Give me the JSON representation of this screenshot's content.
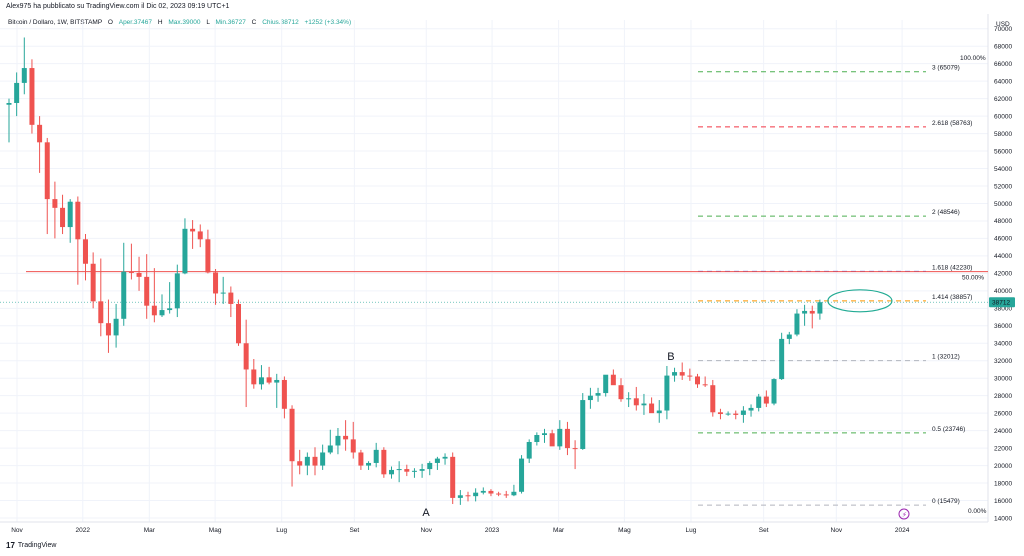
{
  "header": {
    "author_line": "Alex975 ha pubblicato su TradingView.com il Dic 02, 2023 09:19 UTC+1"
  },
  "legend": {
    "symbol": "Bitcoin / Dollaro, 1W, BITSTAMP",
    "open_label": "O",
    "open_text": "Aper.37467",
    "high_label": "H",
    "high_text": "Max.39000",
    "low_label": "L",
    "low_text": "Min.36727",
    "close_label": "C",
    "close_text": "Chius.38712",
    "change_text": "+1252 (+3.34%)"
  },
  "brand": {
    "logo": "17",
    "name": "TradingView"
  },
  "colors": {
    "up": "#26a69a",
    "down": "#ef5350",
    "red_line": "#ef5350",
    "fib_gray": "#b2b5be",
    "fib_green": "#4caf50",
    "fib_red": "#f23645",
    "fib_blue": "#2962ff",
    "fib_orange": "#ff9800",
    "ellipse": "#22ab94",
    "price_badge": "#26a69a"
  },
  "chart_data": {
    "type": "candlestick",
    "currency_label": "USD",
    "ylim": [
      14000,
      71000
    ],
    "y_ticks": [
      14000,
      16000,
      18000,
      20000,
      22000,
      24000,
      26000,
      28000,
      30000,
      32000,
      34000,
      36000,
      38000,
      40000,
      42000,
      44000,
      46000,
      48000,
      50000,
      52000,
      54000,
      56000,
      58000,
      60000,
      62000,
      64000,
      66000,
      68000,
      70000
    ],
    "x_ticks": [
      "Nov",
      "2022",
      "Mar",
      "Mag",
      "Lug",
      "Set",
      "Nov",
      "2023",
      "Mar",
      "Mag",
      "Lug",
      "Set",
      "Nov",
      "2024"
    ],
    "last_price_label": "38712",
    "horizontal_line": {
      "value": 42200,
      "label": "50.00%"
    },
    "fib_levels": [
      {
        "label": "0 (15479)",
        "value": 15479,
        "color": "gray"
      },
      {
        "label": "0.5 (23746)",
        "value": 23746,
        "color": "green"
      },
      {
        "label": "1 (32012)",
        "value": 32012,
        "color": "gray"
      },
      {
        "label": "1.414 (38857)",
        "value": 38857,
        "color": "orange"
      },
      {
        "label": "1.618 (42230)",
        "value": 42230,
        "color": "blue"
      },
      {
        "label": "2 (48546)",
        "value": 48546,
        "color": "green"
      },
      {
        "label": "2.618 (58763)",
        "value": 58763,
        "color": "red"
      },
      {
        "label": "3 (65079)",
        "value": 65079,
        "color": "green"
      }
    ],
    "fib_edge_labels": [
      "100.00%",
      "0.00%"
    ],
    "annotations": [
      {
        "text": "A",
        "week": 54
      },
      {
        "text": "B",
        "week": 86
      }
    ],
    "candles": [
      [
        61300,
        62000,
        57000,
        61500
      ],
      [
        61500,
        65000,
        60000,
        63800
      ],
      [
        63800,
        69000,
        62500,
        65500
      ],
      [
        65500,
        66500,
        58000,
        59000
      ],
      [
        59000,
        60000,
        53500,
        57000
      ],
      [
        57000,
        57500,
        46500,
        50500
      ],
      [
        50500,
        52500,
        46000,
        49500
      ],
      [
        49500,
        51000,
        46500,
        47300
      ],
      [
        47300,
        50500,
        45500,
        50200
      ],
      [
        50200,
        50800,
        40700,
        45900
      ],
      [
        45900,
        46500,
        41200,
        43100
      ],
      [
        43100,
        44400,
        38000,
        38800
      ],
      [
        38800,
        43700,
        34800,
        36300
      ],
      [
        36300,
        39000,
        32900,
        34900
      ],
      [
        34900,
        38500,
        33500,
        36800
      ],
      [
        36800,
        45500,
        36000,
        42200
      ],
      [
        42200,
        45400,
        41300,
        42050
      ],
      [
        42050,
        43900,
        40000,
        41600
      ],
      [
        41600,
        44200,
        36800,
        38300
      ],
      [
        38300,
        42600,
        36400,
        37200
      ],
      [
        37200,
        39600,
        37000,
        37800
      ],
      [
        37800,
        41000,
        37400,
        38000
      ],
      [
        38000,
        43000,
        37000,
        42000
      ],
      [
        42000,
        48300,
        41900,
        47100
      ],
      [
        47100,
        48100,
        44800,
        46800
      ],
      [
        46800,
        47600,
        45000,
        45900
      ],
      [
        45900,
        47000,
        42000,
        42100
      ],
      [
        42100,
        42500,
        38400,
        39700
      ],
      [
        39700,
        41600,
        38500,
        39800
      ],
      [
        39800,
        40500,
        37000,
        38500
      ],
      [
        38500,
        39000,
        33700,
        34000
      ],
      [
        34000,
        36700,
        26700,
        31000
      ],
      [
        31000,
        32200,
        28800,
        29300
      ],
      [
        29300,
        31500,
        28700,
        30100
      ],
      [
        30100,
        31300,
        29300,
        29500
      ],
      [
        29500,
        30500,
        26600,
        29800
      ],
      [
        29800,
        30200,
        25400,
        26500
      ],
      [
        26500,
        26900,
        17600,
        20500
      ],
      [
        20500,
        21800,
        19000,
        20000
      ],
      [
        20000,
        21500,
        18900,
        21000
      ],
      [
        21000,
        22100,
        18900,
        20000
      ],
      [
        20000,
        22400,
        19500,
        21500
      ],
      [
        21500,
        24100,
        21300,
        22300
      ],
      [
        22300,
        24300,
        21300,
        23400
      ],
      [
        23400,
        25200,
        21700,
        23000
      ],
      [
        23000,
        25000,
        20800,
        21500
      ],
      [
        21500,
        21800,
        19500,
        20000
      ],
      [
        20000,
        20500,
        19500,
        20300
      ],
      [
        20300,
        22600,
        19800,
        21800
      ],
      [
        21800,
        22100,
        18600,
        19000
      ],
      [
        19000,
        19900,
        18500,
        19500
      ],
      [
        19500,
        20500,
        18100,
        19600
      ],
      [
        19600,
        20100,
        18800,
        19300
      ],
      [
        19300,
        19700,
        18600,
        19400
      ],
      [
        19400,
        20200,
        18600,
        19600
      ],
      [
        19600,
        20500,
        18900,
        20300
      ],
      [
        20300,
        21000,
        19500,
        20800
      ],
      [
        20800,
        21400,
        20100,
        21000
      ],
      [
        21000,
        21500,
        15600,
        16300
      ],
      [
        16300,
        17200,
        15500,
        16600
      ],
      [
        16600,
        17000,
        15900,
        16500
      ],
      [
        16500,
        17400,
        15900,
        16900
      ],
      [
        16900,
        17500,
        16700,
        17100
      ],
      [
        17100,
        17300,
        16500,
        16800
      ],
      [
        16800,
        17000,
        16500,
        16700
      ],
      [
        16700,
        17100,
        16300,
        16600
      ],
      [
        16600,
        17800,
        16500,
        17000
      ],
      [
        17000,
        21200,
        16800,
        20800
      ],
      [
        20800,
        23000,
        20300,
        22700
      ],
      [
        22700,
        23800,
        22300,
        23500
      ],
      [
        23500,
        24200,
        22600,
        23700
      ],
      [
        23700,
        24100,
        22400,
        22200
      ],
      [
        22200,
        25200,
        21800,
        24200
      ],
      [
        24200,
        25000,
        21200,
        22000
      ],
      [
        22000,
        22900,
        19600,
        21900
      ],
      [
        21900,
        28300,
        21800,
        27500
      ],
      [
        27500,
        28900,
        26500,
        28000
      ],
      [
        28000,
        28900,
        27300,
        28300
      ],
      [
        28300,
        30000,
        27900,
        30400
      ],
      [
        30400,
        31000,
        29400,
        29200
      ],
      [
        29200,
        30000,
        27300,
        27600
      ],
      [
        27600,
        28400,
        26700,
        27700
      ],
      [
        27700,
        29000,
        26300,
        26900
      ],
      [
        26900,
        28200,
        25800,
        27100
      ],
      [
        27100,
        27800,
        26200,
        26000
      ],
      [
        26000,
        27500,
        24900,
        26300
      ],
      [
        26300,
        31400,
        25300,
        30300
      ],
      [
        30300,
        31200,
        29600,
        30700
      ],
      [
        30700,
        31800,
        29800,
        30300
      ],
      [
        30300,
        31100,
        29700,
        30200
      ],
      [
        30200,
        30500,
        28900,
        29300
      ],
      [
        29300,
        30200,
        29000,
        29200
      ],
      [
        29200,
        29800,
        25600,
        26100
      ],
      [
        26100,
        26500,
        25300,
        25900
      ],
      [
        25900,
        26200,
        25700,
        25950
      ],
      [
        25950,
        26300,
        25300,
        25800
      ],
      [
        25800,
        26800,
        24900,
        26300
      ],
      [
        26300,
        27000,
        25600,
        26600
      ],
      [
        26600,
        28200,
        26200,
        27900
      ],
      [
        27900,
        28600,
        26700,
        27100
      ],
      [
        27100,
        30000,
        26900,
        29900
      ],
      [
        29900,
        35200,
        29800,
        34500
      ],
      [
        34500,
        35300,
        33900,
        35000
      ],
      [
        35000,
        37900,
        34800,
        37400
      ],
      [
        37400,
        38400,
        36000,
        37700
      ],
      [
        37700,
        38300,
        35700,
        37400
      ],
      [
        37400,
        39000,
        36700,
        38700
      ]
    ]
  }
}
